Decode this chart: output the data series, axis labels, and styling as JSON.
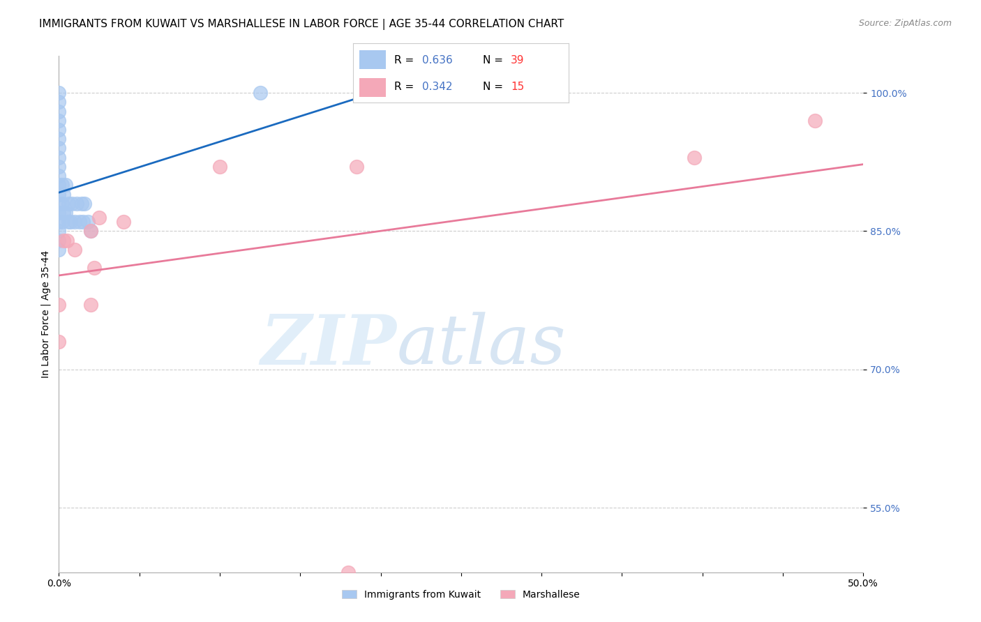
{
  "title": "IMMIGRANTS FROM KUWAIT VS MARSHALLESE IN LABOR FORCE | AGE 35-44 CORRELATION CHART",
  "source": "Source: ZipAtlas.com",
  "ylabel": "In Labor Force | Age 35-44",
  "xlim": [
    0.0,
    0.5
  ],
  "ylim": [
    0.48,
    1.04
  ],
  "x_ticks": [
    0.0,
    0.05,
    0.1,
    0.15,
    0.2,
    0.25,
    0.3,
    0.35,
    0.4,
    0.45,
    0.5
  ],
  "x_tick_labels": [
    "0.0%",
    "",
    "",
    "",
    "",
    "",
    "",
    "",
    "",
    "",
    "50.0%"
  ],
  "y_ticks": [
    0.55,
    0.7,
    0.85,
    1.0
  ],
  "y_tick_labels": [
    "55.0%",
    "70.0%",
    "85.0%",
    "100.0%"
  ],
  "kuwait_x": [
    0.0,
    0.0,
    0.0,
    0.0,
    0.0,
    0.0,
    0.0,
    0.0,
    0.0,
    0.0,
    0.0,
    0.0,
    0.0,
    0.0,
    0.0,
    0.0,
    0.0,
    0.0,
    0.002,
    0.002,
    0.002,
    0.003,
    0.003,
    0.004,
    0.004,
    0.006,
    0.006,
    0.007,
    0.008,
    0.01,
    0.011,
    0.013,
    0.014,
    0.015,
    0.016,
    0.018,
    0.02,
    0.125,
    0.195
  ],
  "kuwait_y": [
    0.87,
    0.88,
    0.89,
    0.9,
    0.91,
    0.92,
    0.93,
    0.94,
    0.95,
    0.96,
    0.97,
    0.98,
    0.99,
    1.0,
    0.83,
    0.84,
    0.85,
    0.86,
    0.86,
    0.88,
    0.9,
    0.87,
    0.89,
    0.87,
    0.9,
    0.86,
    0.88,
    0.86,
    0.88,
    0.86,
    0.88,
    0.86,
    0.88,
    0.86,
    0.88,
    0.86,
    0.85,
    1.0,
    1.0
  ],
  "marshallese_x": [
    0.0,
    0.0,
    0.003,
    0.005,
    0.01,
    0.02,
    0.02,
    0.022,
    0.025,
    0.04,
    0.1,
    0.18,
    0.185,
    0.395,
    0.47
  ],
  "marshallese_y": [
    0.73,
    0.77,
    0.84,
    0.84,
    0.83,
    0.77,
    0.85,
    0.81,
    0.865,
    0.86,
    0.92,
    0.48,
    0.92,
    0.93,
    0.97
  ],
  "kuwait_color": "#a8c8f0",
  "marshallese_color": "#f4a8b8",
  "kuwait_line_color": "#1a6abf",
  "marshallese_line_color": "#e87a9a",
  "kuwait_R": 0.636,
  "kuwait_N": 39,
  "marshallese_R": 0.342,
  "marshallese_N": 15,
  "legend_label_kuwait": "Immigrants from Kuwait",
  "legend_label_marshallese": "Marshallese",
  "title_fontsize": 11,
  "axis_label_fontsize": 10,
  "tick_fontsize": 10
}
